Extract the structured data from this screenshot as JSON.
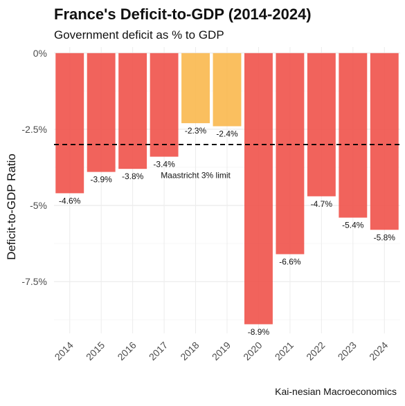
{
  "chart_data": {
    "type": "bar",
    "title": "France's Deficit-to-GDP (2014-2024)",
    "subtitle": "Government deficit as % to GDP",
    "xlabel": "",
    "ylabel": "Deficit-to-GDP Ratio",
    "caption": "Kai-nesian Macroeconomics",
    "categories": [
      "2014",
      "2015",
      "2016",
      "2017",
      "2018",
      "2019",
      "2020",
      "2021",
      "2022",
      "2023",
      "2024"
    ],
    "values": [
      -4.6,
      -3.9,
      -3.8,
      -3.4,
      -2.3,
      -2.4,
      -8.9,
      -6.6,
      -4.7,
      -5.4,
      -5.8
    ],
    "value_labels": [
      "-4.6%",
      "-3.9%",
      "-3.8%",
      "-3.4%",
      "-2.3%",
      "-2.4%",
      "-8.9%",
      "-6.6%",
      "-4.7%",
      "-5.4%",
      "-5.8%"
    ],
    "ylim": [
      -9.2,
      0.2
    ],
    "y_ticks": [
      0,
      -2.5,
      -5,
      -7.5
    ],
    "y_tick_labels": [
      "0%",
      "-2.5%",
      "-5%",
      "-7.5%"
    ],
    "reference_line": {
      "value": -3.0,
      "label": "Maastricht 3% limit",
      "style": "dashed"
    },
    "colors": {
      "above_limit": "#f0524a",
      "within_limit": "#f9b84e",
      "reference_line": "#000000"
    },
    "grid": true,
    "legend": "none"
  }
}
